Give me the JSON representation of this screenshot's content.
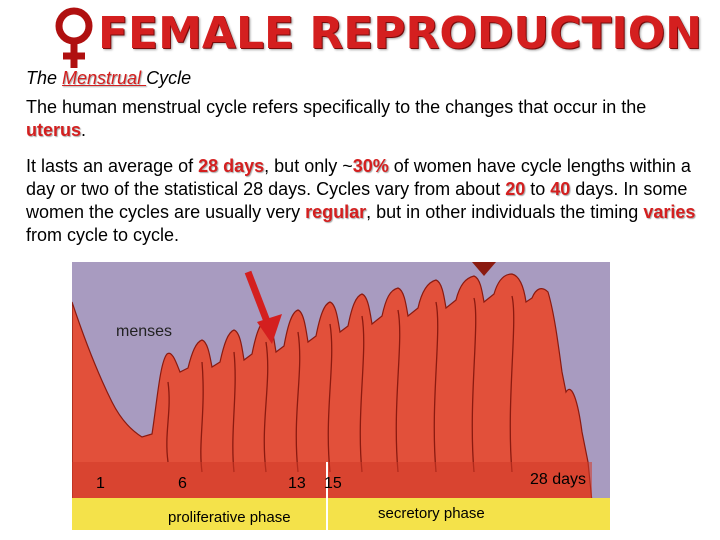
{
  "header": {
    "title": "FEMALE REPRODUCTION",
    "icon": "female-symbol-icon",
    "accent_color": "#d41f1f"
  },
  "subtitle": {
    "prefix": "The ",
    "highlight": "Menstrual ",
    "suffix": "Cycle"
  },
  "paragraph1": {
    "text_before": "The human menstrual cycle refers specifically to the changes that occur in the ",
    "highlight": "uterus",
    "text_after": "."
  },
  "paragraph2": {
    "t1": "It lasts an average of ",
    "h1": "28 days",
    "t2": ", but only ~",
    "h2": "30%",
    "t3": " of women have cycle lengths within a day or two of the statistical 28 days.  Cycles vary from about ",
    "h3": "20",
    "t4": " to ",
    "h4": "40",
    "t5": " days.  In some women the cycles are usually very ",
    "h5": "regular",
    "t6": ", but in other individuals the timing ",
    "h6": "varies",
    "t7": " from cycle to cycle."
  },
  "figure": {
    "menses_label": "menses",
    "day_labels": [
      "1",
      "6",
      "13",
      "15",
      "28 days"
    ],
    "phase_labels": [
      "proliferative phase",
      "secretory phase"
    ],
    "colors": {
      "tissue": "#e2503a",
      "background": "#a89bc0",
      "base": "#f4e24a"
    }
  }
}
